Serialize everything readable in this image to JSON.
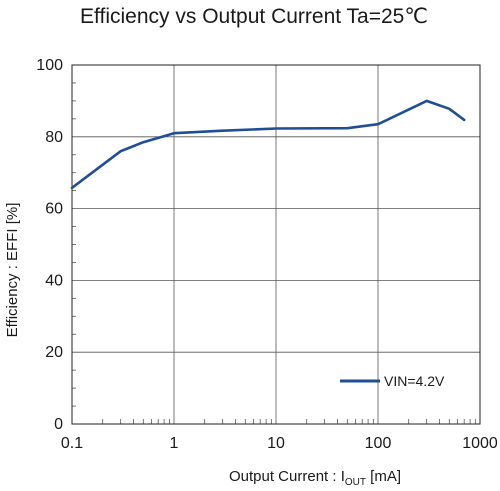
{
  "chart_data": {
    "type": "line",
    "title": "Efficiency vs Output Current  Ta=25℃",
    "xlabel": {
      "main": "Output Current : I",
      "sub": "OUT",
      "suffix": " [mA]"
    },
    "ylabel": "Efficiency : EFFI [%]",
    "xscale": "log",
    "xlim": [
      0.1,
      1000
    ],
    "ylim": [
      0,
      100
    ],
    "x_ticks": [
      {
        "value": 0.1,
        "label": "0.1"
      },
      {
        "value": 1,
        "label": "1"
      },
      {
        "value": 10,
        "label": "10"
      },
      {
        "value": 100,
        "label": "100"
      },
      {
        "value": 1000,
        "label": "1000"
      }
    ],
    "y_ticks": [
      {
        "value": 0,
        "label": "0"
      },
      {
        "value": 20,
        "label": "20"
      },
      {
        "value": 40,
        "label": "40"
      },
      {
        "value": 60,
        "label": "60"
      },
      {
        "value": 80,
        "label": "80"
      },
      {
        "value": 100,
        "label": "100"
      }
    ],
    "grid": true,
    "legend_position": "bottom-right",
    "series": [
      {
        "name": "VIN=4.2V",
        "color": "#1f4e96",
        "points": [
          {
            "x": 0.1,
            "y": 65.8
          },
          {
            "x": 0.3,
            "y": 76.0
          },
          {
            "x": 0.5,
            "y": 78.5
          },
          {
            "x": 1,
            "y": 81.0
          },
          {
            "x": 3,
            "y": 81.7
          },
          {
            "x": 10,
            "y": 82.3
          },
          {
            "x": 50,
            "y": 82.4
          },
          {
            "x": 100,
            "y": 83.5
          },
          {
            "x": 300,
            "y": 90.0
          },
          {
            "x": 500,
            "y": 87.8
          },
          {
            "x": 700,
            "y": 84.7
          }
        ]
      }
    ]
  }
}
